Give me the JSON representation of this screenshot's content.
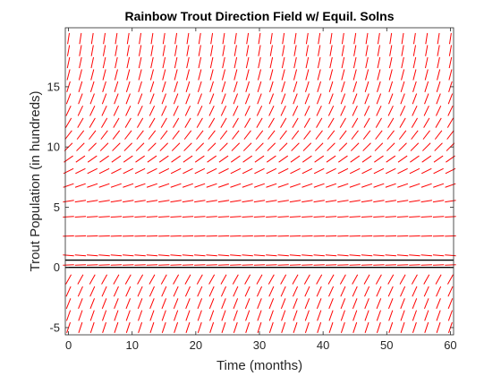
{
  "chart_data": {
    "type": "direction-field",
    "title": "Rainbow Trout Direction Field w/ Equil. Solns",
    "xlabel": "Time (months)",
    "ylabel": "Trout Population (in hundreds)",
    "xlim": [
      -0.5,
      60.5
    ],
    "ylim": [
      -5.6,
      19.9
    ],
    "x_ticks": [
      0,
      10,
      20,
      30,
      40,
      50,
      60
    ],
    "y_ticks": [
      -5,
      0,
      5,
      10,
      15
    ],
    "grid": false,
    "field": {
      "color": "#ff0000",
      "x_start": 0,
      "x_step": 1.875,
      "x_count": 33,
      "y_values": [
        -5,
        -4,
        -3,
        -2,
        -1,
        0.2,
        1,
        2.6,
        4.2,
        5.5,
        6.8,
        8,
        9,
        10,
        11,
        12,
        13,
        14,
        15,
        16,
        17,
        18,
        19
      ],
      "slopes": [
        3,
        2.8,
        2.5,
        2.2,
        1.8,
        0.04,
        -0.08,
        0.03,
        0.06,
        0.15,
        0.35,
        0.5,
        0.7,
        1.0,
        1.3,
        1.7,
        2.1,
        2.6,
        3.2,
        3.9,
        4.7,
        5.5,
        6.5
      ]
    },
    "equilibria": [
      {
        "y": 0,
        "color": "#000000"
      },
      {
        "y": 0.6,
        "color": "#000000"
      }
    ]
  }
}
